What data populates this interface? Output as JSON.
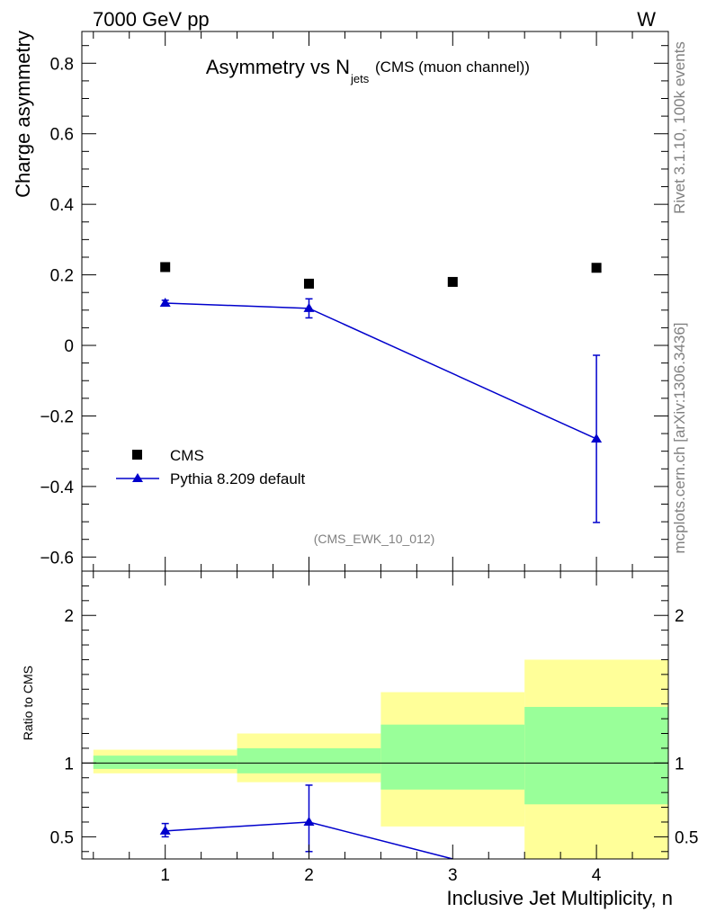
{
  "header": {
    "energy_label": "7000 GeV pp",
    "process_label": "W"
  },
  "side_labels": {
    "rivet": "Rivet 3.1.10,  100k events",
    "mcplots": "mcplots.cern.ch [arXiv:1306.3436]"
  },
  "colors": {
    "mc": "#0000cc",
    "data": "#000000",
    "band_inner": "#99ff99",
    "band_outer": "#ffff99",
    "grey_text": "#808080"
  },
  "chart_data": [
    {
      "type": "scatter",
      "title_main": "Asymmetry vs N",
      "title_sub": "jets",
      "title_note": "(CMS (muon channel))",
      "analysis_label": "(CMS_EWK_10_012)",
      "ylabel": "Charge asymmetry",
      "xlim": [
        0.42,
        4.5
      ],
      "ylim": [
        -0.64,
        0.89
      ],
      "yticks": [
        -0.6,
        -0.4,
        -0.2,
        0,
        0.2,
        0.4,
        0.6,
        0.8
      ],
      "ytick_labels": [
        "−0.6",
        "−0.4",
        "−0.2",
        "0",
        "0.2",
        "0.4",
        "0.6",
        "0.8"
      ],
      "legend": {
        "position": "bottom-left",
        "entries": [
          "CMS",
          "Pythia 8.209 default"
        ]
      },
      "series": [
        {
          "name": "CMS",
          "marker": "square",
          "x": [
            1,
            2,
            3,
            4
          ],
          "y": [
            0.222,
            0.175,
            0.18,
            0.22
          ]
        },
        {
          "name": "Pythia 8.209 default",
          "marker": "triangle",
          "x": [
            1,
            2,
            4
          ],
          "y": [
            0.12,
            0.105,
            -0.265
          ],
          "yerr": [
            0.008,
            0.027,
            0.237
          ]
        }
      ]
    },
    {
      "type": "line",
      "ylabel": "Ratio to CMS",
      "xlabel": "Inclusive Jet Multiplicity, n",
      "xlim": [
        0.42,
        4.5
      ],
      "ylim": [
        0.35,
        2.3
      ],
      "xticks": [
        1,
        2,
        3,
        4
      ],
      "xtick_labels": [
        "1",
        "2",
        "3",
        "4"
      ],
      "yticks": [
        0.5,
        1,
        2
      ],
      "ytick_labels": [
        "0.5",
        "1",
        "2"
      ],
      "reference_line": 1,
      "bands": [
        {
          "x0": 0.5,
          "x1": 1.5,
          "inner": [
            0.96,
            1.05
          ],
          "outer": [
            0.93,
            1.09
          ]
        },
        {
          "x0": 1.5,
          "x1": 2.5,
          "inner": [
            0.93,
            1.1
          ],
          "outer": [
            0.87,
            1.2
          ]
        },
        {
          "x0": 2.5,
          "x1": 3.5,
          "inner": [
            0.82,
            1.26
          ],
          "outer": [
            0.57,
            1.48
          ]
        },
        {
          "x0": 3.5,
          "x1": 4.5,
          "inner": [
            0.72,
            1.38
          ],
          "outer": [
            0.35,
            1.7
          ]
        }
      ],
      "series": [
        {
          "name": "Pythia 8.209 default",
          "x": [
            1,
            2,
            3
          ],
          "y": [
            0.54,
            0.6,
            0.35
          ],
          "yerr_low": [
            0.04,
            0.2,
            0
          ],
          "yerr_high": [
            0.05,
            0.25,
            0
          ]
        }
      ]
    }
  ]
}
